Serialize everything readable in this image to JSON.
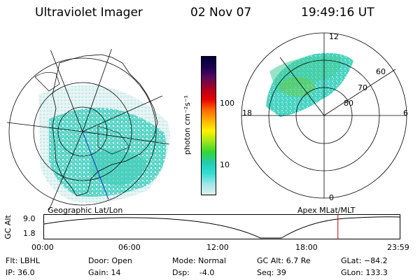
{
  "header": {
    "instrument": "Ultraviolet Imager",
    "date": "02 Nov 07",
    "time": "19:49:16 UT"
  },
  "left_panel": {
    "caption": "Geographic Lat/Lon"
  },
  "right_panel": {
    "caption": "Apex MLat/MLT",
    "mlt_labels": {
      "top": "12",
      "left": "18",
      "right": "6",
      "bottom": "0"
    },
    "lat_labels": [
      "60",
      "70",
      "80"
    ]
  },
  "colorbar": {
    "unit_label": "photon cm⁻²s⁻¹",
    "ticks": [
      "100",
      "10"
    ],
    "scale": "log",
    "colors": [
      "#000033",
      "#1a0050",
      "#5a0a5a",
      "#aa0022",
      "#e60000",
      "#ff6600",
      "#ffb000",
      "#fff200",
      "#9be61a",
      "#33d633",
      "#22ccb0",
      "#33ddd5",
      "#9fe6e6",
      "#e0f0f0"
    ]
  },
  "timeline": {
    "ylabel": "GC Alt",
    "y_ticks": [
      "9.0",
      "1.8"
    ],
    "x_ticks": [
      "00:00",
      "06:00",
      "12:00",
      "18:00",
      "23:59"
    ],
    "marker_time": "19:49",
    "marker_color": "#cc0000"
  },
  "info": {
    "flt": "Flt: LBHL",
    "ip": "IP: 36.0",
    "door": "Door: Open",
    "gain": "Gain: 14",
    "mode": "Mode: Normal",
    "dsp": "Dsp:    -4.0",
    "gc_alt": "GC Alt: 6.7 Re",
    "seq": "Seq: 39",
    "glat": "GLat: −84.2",
    "glon": "GLon: 133.3"
  }
}
